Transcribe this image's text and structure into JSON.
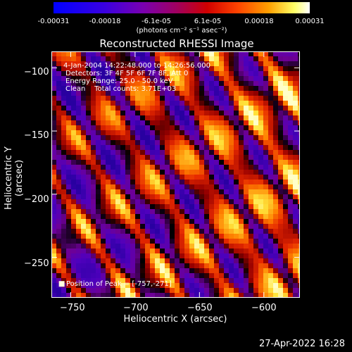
{
  "colorbar": {
    "ticks": [
      "-0.00031",
      "-0.00018",
      "-6.1e-05",
      "6.1e-05",
      "0.00018",
      "0.00031"
    ],
    "unit_label": "(photons cm⁻² s⁻¹ asec⁻²)"
  },
  "chart_data": {
    "type": "heatmap",
    "title": "Reconstructed RHESSI Image",
    "xlabel": "Heliocentric X (arcsec)",
    "ylabel": "Heliocentric Y (arcsec)",
    "xlim": [
      -765,
      -572
    ],
    "ylim": [
      -282,
      -87
    ],
    "xticks": [
      -750,
      -700,
      -650,
      -600
    ],
    "yticks": [
      -100,
      -150,
      -200,
      -250
    ],
    "xtick_labels": [
      "−750",
      "−700",
      "−650",
      "−600"
    ],
    "ytick_labels": [
      "−100",
      "−150",
      "−200",
      "−250"
    ],
    "colorscale_range": [
      -0.00031,
      0.00031
    ],
    "annotations": [
      "4-Jan-2004 14:22:48.000 to 14:26:56.000",
      "Detectors: 3F 4F 5F 6F 7F 8F, Att 0",
      "Energy Range: 25.0 - 50.0 keV",
      "Clean    Total counts: 3.71E+03",
      "Position of Peak = [-757,-271]"
    ]
  },
  "footer": {
    "timestamp": "27-Apr-2022 16:28"
  },
  "palette": {
    "low": "#3a00c8",
    "mid": "#800080",
    "hot": "#ff3000",
    "peak": "#ffff80"
  }
}
